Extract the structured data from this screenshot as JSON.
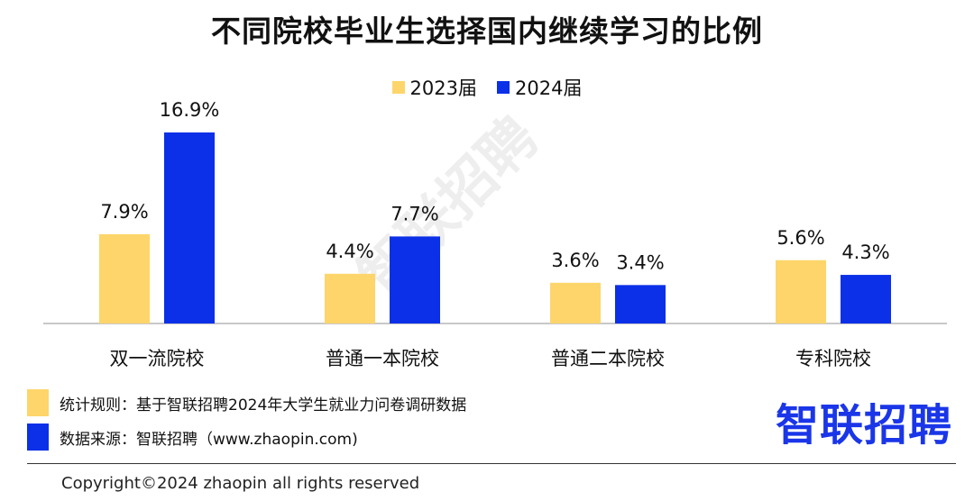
{
  "title": "不同院校毕业生选择国内继续学习的比例",
  "legend": [
    {
      "label": "2023届",
      "color": "#fdd56a"
    },
    {
      "label": "2024届",
      "color": "#0b30e8"
    }
  ],
  "chart_data": {
    "type": "bar",
    "categories": [
      "双一流院校",
      "普通一本院校",
      "普通二本院校",
      "专科院校"
    ],
    "series": [
      {
        "name": "2023届",
        "color": "#fdd56a",
        "values": [
          7.9,
          4.4,
          3.6,
          5.6
        ],
        "labels": [
          "7.9%",
          "4.4%",
          "3.6%",
          "5.6%"
        ]
      },
      {
        "name": "2024届",
        "color": "#0b30e8",
        "values": [
          16.9,
          7.7,
          3.4,
          4.3
        ],
        "labels": [
          "16.9%",
          "7.7%",
          "3.4%",
          "4.3%"
        ]
      }
    ],
    "ylim": [
      0,
      18
    ],
    "legend_position": "top-center",
    "grid": false
  },
  "notes": [
    {
      "text": "统计规则：基于智联招聘2024年大学生就业力问卷调研数据",
      "color": "#fdd56a"
    },
    {
      "text": "数据来源：智联招聘（www.zhaopin.com)",
      "color": "#0b30e8"
    }
  ],
  "brand": "智联招聘",
  "watermark": "智联招聘",
  "copyright": "Copyright©2024 zhaopin all rights reserved"
}
